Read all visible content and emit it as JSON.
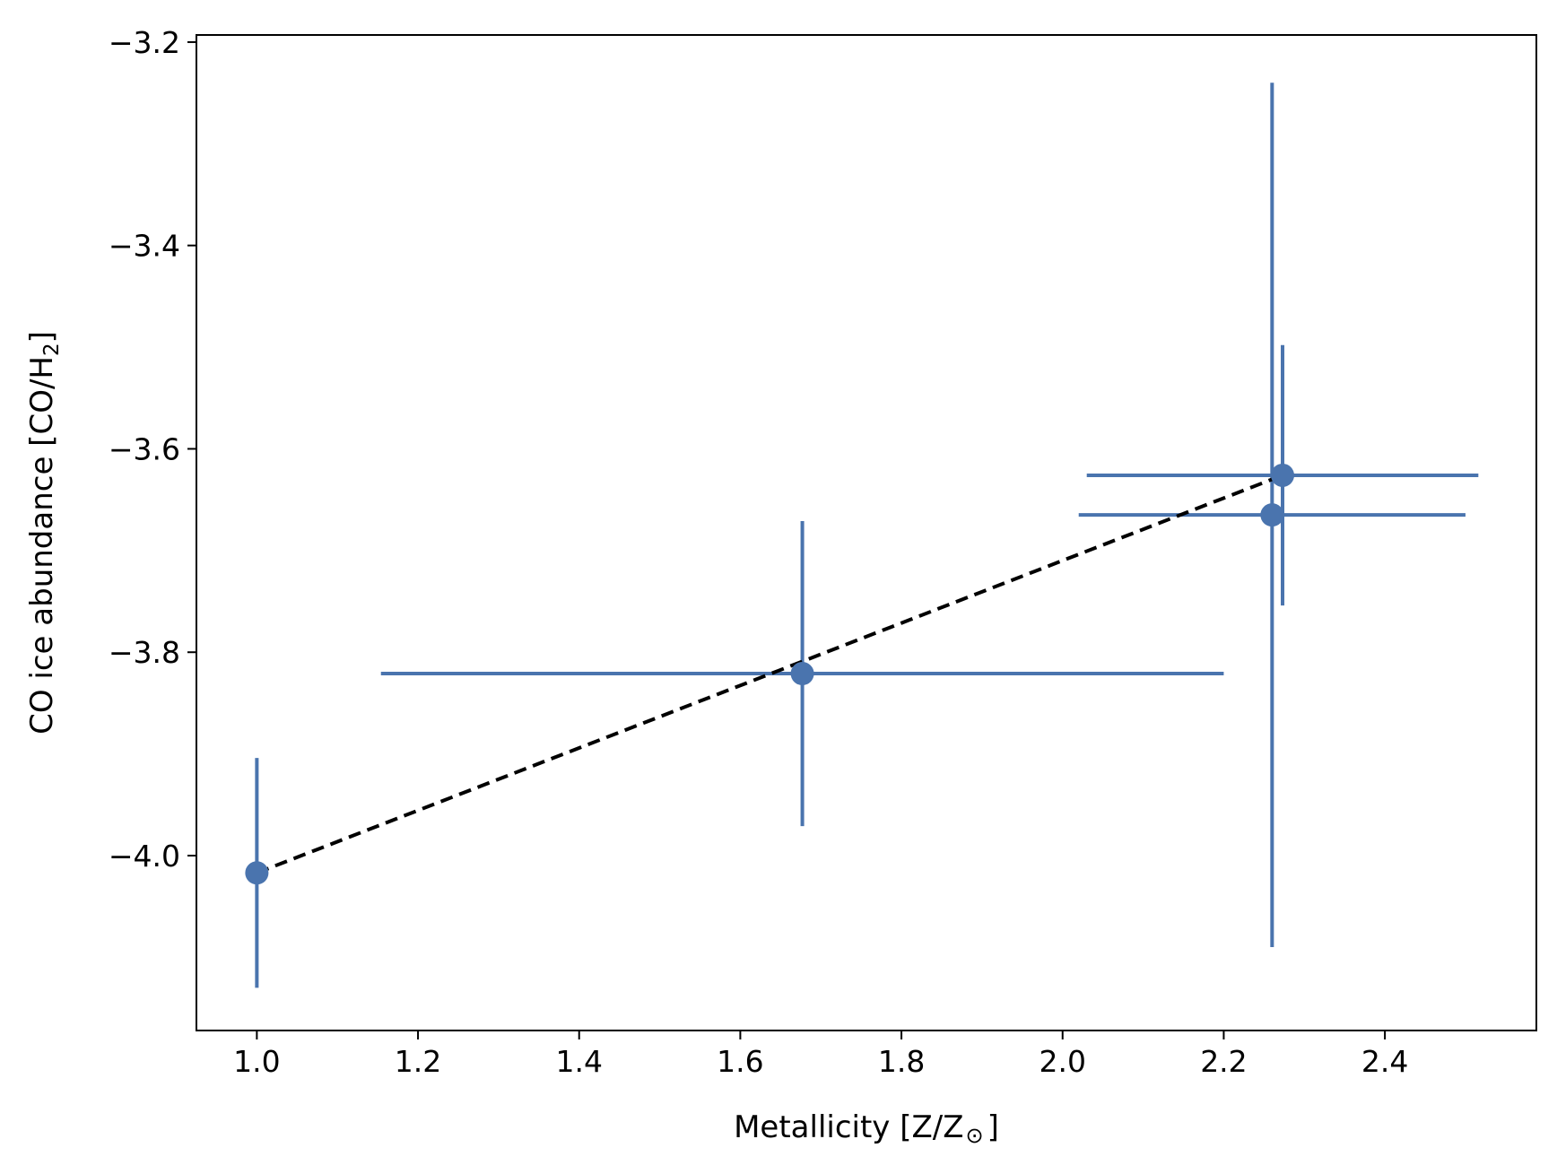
{
  "chart_data": {
    "type": "scatter",
    "title": "",
    "xlabel": "Metallicity [Z/Z",
    "xlabel_symbol": "⊙",
    "xlabel_close": "]",
    "ylabel": "CO ice abundance [CO/H",
    "ylabel_sub": "2",
    "ylabel_close": "]",
    "xlim": [
      0.925,
      2.588
    ],
    "ylim": [
      -4.172,
      -3.193
    ],
    "xticks": [
      1.0,
      1.2,
      1.4,
      1.6,
      1.8,
      2.0,
      2.2,
      2.4
    ],
    "xtick_labels": [
      "1.0",
      "1.2",
      "1.4",
      "1.6",
      "1.8",
      "2.0",
      "2.2",
      "2.4"
    ],
    "yticks": [
      -4.0,
      -3.8,
      -3.6,
      -3.4,
      -3.2
    ],
    "ytick_labels": [
      "−4.0",
      "−3.8",
      "−3.6",
      "−3.4",
      "−3.2"
    ],
    "grid": false,
    "colors": {
      "points": "#4a74ae",
      "fit_line": "#000000"
    },
    "series": [
      {
        "points": [
          {
            "x": 1.0,
            "y": -4.017,
            "xerr_low": 0,
            "xerr_high": 0,
            "yerr_low": 0.113,
            "yerr_high": 0.113
          },
          {
            "x": 1.677,
            "y": -3.821,
            "xerr_low": 0.523,
            "xerr_high": 0.523,
            "yerr_low": 0.15,
            "yerr_high": 0.15
          },
          {
            "x": 2.26,
            "y": -3.665,
            "xerr_low": 0.24,
            "xerr_high": 0.24,
            "yerr_low": 0.425,
            "yerr_high": 0.425
          },
          {
            "x": 2.273,
            "y": -3.626,
            "xerr_low": 0.243,
            "xerr_high": 0.243,
            "yerr_low": 0.128,
            "yerr_high": 0.128
          }
        ]
      }
    ],
    "fit_line": {
      "style": "dashed",
      "x": [
        1.0,
        2.273
      ],
      "y": [
        -4.017,
        -3.626
      ]
    }
  }
}
